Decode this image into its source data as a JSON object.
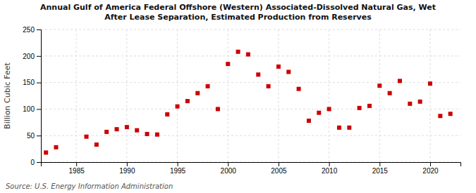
{
  "chart_data": {
    "type": "scatter",
    "title": "Annual Gulf of America Federal Offshore (Western) Associated-Dissolved Natural Gas, Wet\nAfter Lease Separation, Estimated Production from Reserves",
    "ylabel": "Billion Cubic Feet",
    "annotations": [
      "Source: U.S. Energy Information Administration"
    ],
    "x": [
      1982,
      1983,
      1986,
      1987,
      1988,
      1989,
      1990,
      1991,
      1992,
      1993,
      1994,
      1995,
      1996,
      1997,
      1998,
      1999,
      2000,
      2001,
      2002,
      2003,
      2004,
      2005,
      2006,
      2007,
      2008,
      2009,
      2010,
      2011,
      2012,
      2013,
      2014,
      2015,
      2016,
      2017,
      2018,
      2019,
      2020,
      2021,
      2022
    ],
    "values": [
      18,
      28,
      48,
      33,
      57,
      62,
      66,
      60,
      53,
      52,
      90,
      105,
      115,
      130,
      143,
      100,
      185,
      208,
      203,
      165,
      143,
      180,
      170,
      138,
      78,
      93,
      100,
      65,
      65,
      102,
      106,
      144,
      130,
      153,
      110,
      114,
      148,
      87,
      91
    ],
    "color": "#cc0000",
    "marker": "square",
    "xlim": [
      1981.5,
      2023
    ],
    "xticks": [
      1985,
      1990,
      1995,
      2000,
      2005,
      2010,
      2015,
      2020
    ],
    "ylim": [
      0,
      250
    ],
    "yticks": [
      0,
      50,
      100,
      150,
      200,
      250
    ],
    "grid": true
  }
}
